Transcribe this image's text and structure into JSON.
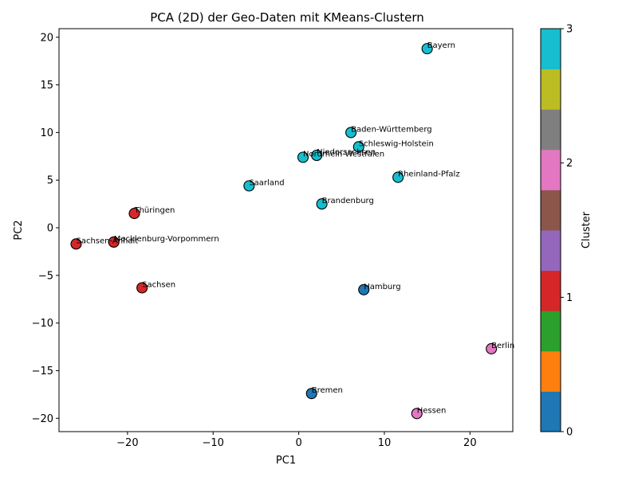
{
  "chart_data": {
    "type": "scatter",
    "title": "PCA (2D) der Geo-Daten mit KMeans-Clustern",
    "xlabel": "PC1",
    "ylabel": "PC2",
    "xlim": [
      -28.0,
      25.0
    ],
    "ylim": [
      -21.4,
      20.9
    ],
    "xticks": [
      -20,
      -10,
      0,
      10,
      20
    ],
    "yticks": [
      -20,
      -15,
      -10,
      -5,
      0,
      5,
      10,
      15,
      20
    ],
    "grid": false,
    "legend": "none",
    "colorbar": {
      "label": "Cluster",
      "range": [
        0,
        3
      ],
      "ticks": [
        0,
        1,
        2,
        3
      ],
      "segment_colors": [
        "#1f77b4",
        "#ff7f0e",
        "#2ca02c",
        "#d62728",
        "#9467bd",
        "#8c564b",
        "#e377c2",
        "#7f7f7f",
        "#bcbd22",
        "#17becf"
      ]
    },
    "cluster_colors": {
      "0": "#1f77b4",
      "1": "#d62728",
      "2": "#e377c2",
      "3": "#17becf"
    },
    "points": [
      {
        "label": "Bayern",
        "x": 15.0,
        "y": 18.8,
        "cluster": 3
      },
      {
        "label": "Baden-Württemberg",
        "x": 6.1,
        "y": 10.0,
        "cluster": 3
      },
      {
        "label": "Schleswig-Holstein",
        "x": 7.0,
        "y": 8.5,
        "cluster": 3
      },
      {
        "label": "Niedersachsen",
        "x": 2.1,
        "y": 7.6,
        "cluster": 3
      },
      {
        "label": "Nordrhein-Westfalen",
        "x": 0.5,
        "y": 7.4,
        "cluster": 3
      },
      {
        "label": "Rheinland-Pfalz",
        "x": 11.6,
        "y": 5.3,
        "cluster": 3
      },
      {
        "label": "Saarland",
        "x": -5.8,
        "y": 4.4,
        "cluster": 3
      },
      {
        "label": "Brandenburg",
        "x": 2.7,
        "y": 2.5,
        "cluster": 3
      },
      {
        "label": "Thüringen",
        "x": -19.2,
        "y": 1.5,
        "cluster": 1
      },
      {
        "label": "Mecklenburg-Vorpommern",
        "x": -21.6,
        "y": -1.5,
        "cluster": 1
      },
      {
        "label": "Sachsen-Anhalt",
        "x": -26.0,
        "y": -1.7,
        "cluster": 1
      },
      {
        "label": "Sachsen",
        "x": -18.3,
        "y": -6.3,
        "cluster": 1
      },
      {
        "label": "Hamburg",
        "x": 7.6,
        "y": -6.5,
        "cluster": 0
      },
      {
        "label": "Berlin",
        "x": 22.5,
        "y": -12.7,
        "cluster": 2
      },
      {
        "label": "Bremen",
        "x": 1.5,
        "y": -17.4,
        "cluster": 0
      },
      {
        "label": "Hessen",
        "x": 13.8,
        "y": -19.5,
        "cluster": 2
      }
    ]
  }
}
